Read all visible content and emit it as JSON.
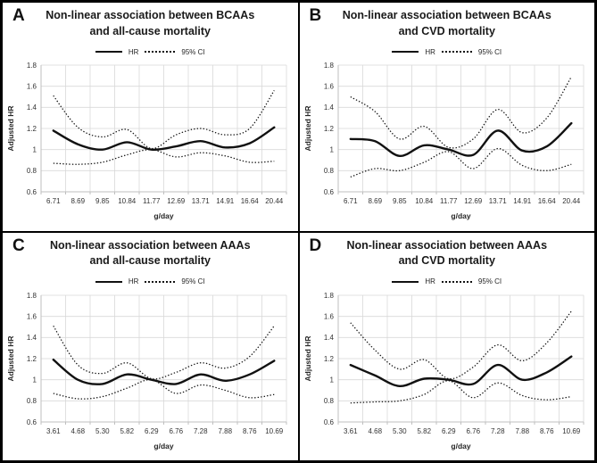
{
  "figure": {
    "background": "#ffffff",
    "border_color": "#000000",
    "text_color": "#262626",
    "gridline_color": "#d9d9d9",
    "axis_color": "#bfbfbf",
    "line_color": "#111111"
  },
  "chart_data": [
    {
      "panel": "A",
      "type": "line",
      "title_line1": "Non-linear association between BCAAs",
      "title_line2": "and all-cause mortality",
      "legend_hr": "HR",
      "legend_ci": "95% CI",
      "legend_position": "top",
      "xlabel": "g/day",
      "ylabel": "Adjusted HR",
      "ylim": [
        0.6,
        1.8
      ],
      "yticks": [
        0.6,
        0.8,
        1,
        1.2,
        1.4,
        1.6,
        1.8
      ],
      "ytick_labels": [
        "0.6",
        "0.8",
        "1",
        "1.2",
        "1.4",
        "1.6",
        "1.8"
      ],
      "grid": true,
      "categories": [
        "6.71",
        "8.69",
        "9.85",
        "10.84",
        "11.77",
        "12.69",
        "13.71",
        "14.91",
        "16.64",
        "20.44"
      ],
      "series": [
        {
          "name": "HR",
          "style": "solid",
          "values": [
            1.18,
            1.05,
            1.0,
            1.07,
            1.0,
            1.03,
            1.08,
            1.02,
            1.06,
            1.21
          ]
        },
        {
          "name": "95% CI upper",
          "style": "dotted",
          "values": [
            1.51,
            1.21,
            1.12,
            1.19,
            1.01,
            1.14,
            1.2,
            1.14,
            1.2,
            1.56
          ]
        },
        {
          "name": "95% CI lower",
          "style": "dotted",
          "values": [
            0.87,
            0.86,
            0.88,
            0.95,
            1.0,
            0.93,
            0.97,
            0.94,
            0.88,
            0.89
          ]
        }
      ]
    },
    {
      "panel": "B",
      "type": "line",
      "title_line1": "Non-linear association between BCAAs",
      "title_line2": "and CVD mortality",
      "legend_hr": "HR",
      "legend_ci": "95% CI",
      "legend_position": "top",
      "xlabel": "g/day",
      "ylabel": "Adjusted HR",
      "ylim": [
        0.6,
        1.8
      ],
      "yticks": [
        0.6,
        0.8,
        1,
        1.2,
        1.4,
        1.6,
        1.8
      ],
      "ytick_labels": [
        "0.6",
        "0.8",
        "1",
        "1.2",
        "1.4",
        "1.6",
        "1.8"
      ],
      "grid": true,
      "categories": [
        "6.71",
        "8.69",
        "9.85",
        "10.84",
        "11.77",
        "12.69",
        "13.71",
        "14.91",
        "16.64",
        "20.44"
      ],
      "series": [
        {
          "name": "HR",
          "style": "solid",
          "values": [
            1.1,
            1.08,
            0.94,
            1.04,
            1.0,
            0.95,
            1.18,
            0.99,
            1.03,
            1.25
          ]
        },
        {
          "name": "95% CI upper",
          "style": "dotted",
          "values": [
            1.5,
            1.36,
            1.1,
            1.22,
            1.02,
            1.1,
            1.38,
            1.16,
            1.3,
            1.69
          ]
        },
        {
          "name": "95% CI lower",
          "style": "dotted",
          "values": [
            0.74,
            0.82,
            0.8,
            0.88,
            0.98,
            0.82,
            1.01,
            0.85,
            0.8,
            0.86
          ]
        }
      ]
    },
    {
      "panel": "C",
      "type": "line",
      "title_line1": "Non-linear association between AAAs",
      "title_line2": "and all-cause mortality",
      "legend_hr": "HR",
      "legend_ci": "95% CI",
      "legend_position": "top",
      "xlabel": "g/day",
      "ylabel": "Adjusted HR",
      "ylim": [
        0.6,
        1.8
      ],
      "yticks": [
        0.6,
        0.8,
        1,
        1.2,
        1.4,
        1.6,
        1.8
      ],
      "ytick_labels": [
        "0.6",
        "0.8",
        "1",
        "1.2",
        "1.4",
        "1.6",
        "1.8"
      ],
      "grid": true,
      "categories": [
        "3.61",
        "4.68",
        "5.30",
        "5.82",
        "6.29",
        "6.76",
        "7.28",
        "7.88",
        "8.76",
        "10.69"
      ],
      "series": [
        {
          "name": "HR",
          "style": "solid",
          "values": [
            1.19,
            1.0,
            0.96,
            1.05,
            1.0,
            0.96,
            1.05,
            0.99,
            1.05,
            1.18
          ]
        },
        {
          "name": "95% CI upper",
          "style": "dotted",
          "values": [
            1.51,
            1.14,
            1.06,
            1.16,
            1.01,
            1.07,
            1.16,
            1.11,
            1.22,
            1.51
          ]
        },
        {
          "name": "95% CI lower",
          "style": "dotted",
          "values": [
            0.87,
            0.82,
            0.84,
            0.92,
            1.0,
            0.87,
            0.95,
            0.9,
            0.83,
            0.86
          ]
        }
      ]
    },
    {
      "panel": "D",
      "type": "line",
      "title_line1": "Non-linear association between AAAs",
      "title_line2": "and CVD mortality",
      "legend_hr": "HR",
      "legend_ci": "95% CI",
      "legend_position": "top",
      "xlabel": "g/day",
      "ylabel": "Adjusted HR",
      "ylim": [
        0.6,
        1.8
      ],
      "yticks": [
        0.6,
        0.8,
        1,
        1.2,
        1.4,
        1.6,
        1.8
      ],
      "ytick_labels": [
        "0.6",
        "0.8",
        "1",
        "1.2",
        "1.4",
        "1.6",
        "1.8"
      ],
      "grid": true,
      "categories": [
        "3.61",
        "4.68",
        "5.30",
        "5.82",
        "6.29",
        "6.76",
        "7.28",
        "7.88",
        "8.76",
        "10.69"
      ],
      "series": [
        {
          "name": "HR",
          "style": "solid",
          "values": [
            1.14,
            1.04,
            0.94,
            1.01,
            1.0,
            0.96,
            1.14,
            1.0,
            1.07,
            1.22
          ]
        },
        {
          "name": "95% CI upper",
          "style": "dotted",
          "values": [
            1.54,
            1.28,
            1.1,
            1.19,
            1.01,
            1.12,
            1.33,
            1.18,
            1.35,
            1.65
          ]
        },
        {
          "name": "95% CI lower",
          "style": "dotted",
          "values": [
            0.78,
            0.79,
            0.8,
            0.86,
            0.99,
            0.83,
            0.97,
            0.85,
            0.81,
            0.84
          ]
        }
      ]
    }
  ]
}
